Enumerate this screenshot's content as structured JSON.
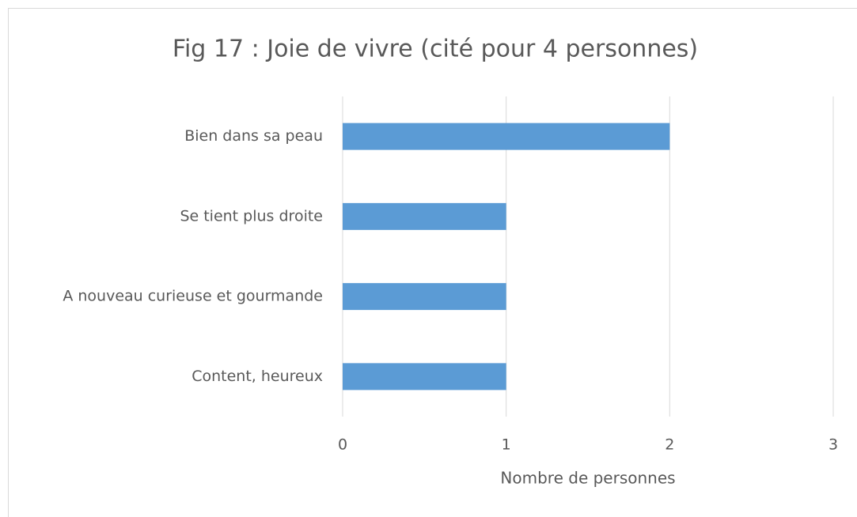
{
  "chart_data": {
    "type": "bar",
    "orientation": "horizontal",
    "title": "Fig 17 : Joie de vivre (cité pour 4 personnes)",
    "x_label": "Nombre de personnes",
    "categories": [
      "Bien dans sa peau",
      "Se tient plus droite",
      "A nouveau curieuse et gourmande",
      "Content, heureux"
    ],
    "values": [
      2,
      1,
      1,
      1
    ],
    "color": "#5b9bd5",
    "xlim": [
      0,
      3
    ],
    "xticks": [
      0,
      1,
      2,
      3
    ],
    "grid": true
  }
}
